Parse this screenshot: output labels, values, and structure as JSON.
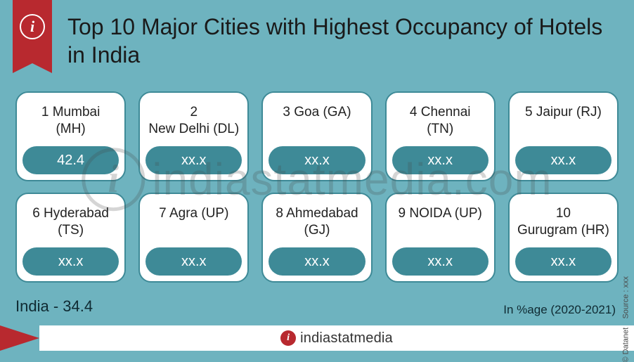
{
  "background_color": "#6eb3bf",
  "ribbon_color": "#b8292f",
  "card_border_color": "#3e8a97",
  "pill_background": "#3e8a97",
  "pill_text_color": "#ffffff",
  "title": "Top 10 Major Cities with Highest Occupancy of Hotels in India",
  "title_color": "#1a1a1a",
  "title_fontsize": 32,
  "cards": [
    {
      "rank": 1,
      "label": "1 Mumbai\n(MH)",
      "value": "42.4"
    },
    {
      "rank": 2,
      "label": "2\nNew Delhi (DL)",
      "value": "xx.x"
    },
    {
      "rank": 3,
      "label": "3 Goa (GA)",
      "value": "xx.x"
    },
    {
      "rank": 4,
      "label": "4 Chennai\n(TN)",
      "value": "xx.x"
    },
    {
      "rank": 5,
      "label": "5 Jaipur (RJ)",
      "value": "xx.x"
    },
    {
      "rank": 6,
      "label": "6 Hyderabad\n(TS)",
      "value": "xx.x"
    },
    {
      "rank": 7,
      "label": "7 Agra (UP)",
      "value": "xx.x"
    },
    {
      "rank": 8,
      "label": "8 Ahmedabad\n(GJ)",
      "value": "xx.x"
    },
    {
      "rank": 9,
      "label": "9 NOIDA (UP)",
      "value": "xx.x"
    },
    {
      "rank": 10,
      "label": "10\nGurugram (HR)",
      "value": "xx.x"
    }
  ],
  "footer_label": "India",
  "footer_value": "34.4",
  "meta_text": "In %age (2020-2021)",
  "brand": "indiastatmedia",
  "side_credit_prefix": "© Datanet",
  "side_credit_source": "Source : xxx",
  "watermark_text": "indiastatmedia.com"
}
